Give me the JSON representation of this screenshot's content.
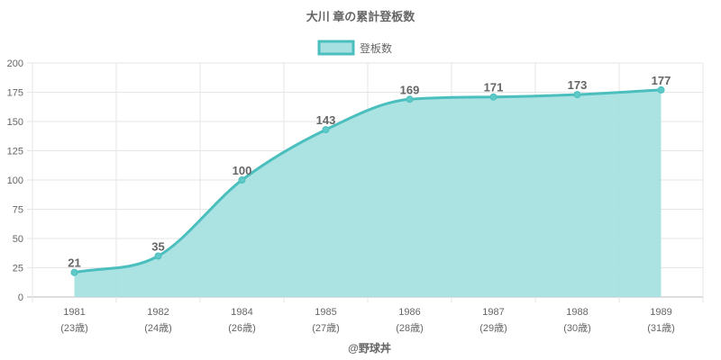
{
  "chart_data": {
    "type": "area",
    "title": "大川 章の累計登板数",
    "legend": {
      "label": "登板数",
      "placement": "top-center"
    },
    "categories": [
      "1981",
      "1982",
      "1984",
      "1985",
      "1986",
      "1987",
      "1988",
      "1989"
    ],
    "subcategories": [
      "(23歳)",
      "(24歳)",
      "(26歳)",
      "(27歳)",
      "(28歳)",
      "(29歳)",
      "(30歳)",
      "(31歳)"
    ],
    "series": [
      {
        "name": "登板数",
        "values": [
          21,
          35,
          100,
          143,
          169,
          171,
          173,
          177
        ]
      }
    ],
    "data_labels": [
      "21",
      "35",
      "100",
      "143",
      "169",
      "171",
      "173",
      "177"
    ],
    "ylim": [
      0,
      200
    ],
    "yticks": [
      "0",
      "25",
      "50",
      "75",
      "100",
      "125",
      "150",
      "175",
      "200"
    ],
    "xlabel": "@野球丼",
    "ylabel": "",
    "grid": true,
    "colors": {
      "line": "#4bbfbe",
      "fill": "#a7e0e0",
      "grid": "#e6e6e6",
      "text": "#666666"
    }
  }
}
